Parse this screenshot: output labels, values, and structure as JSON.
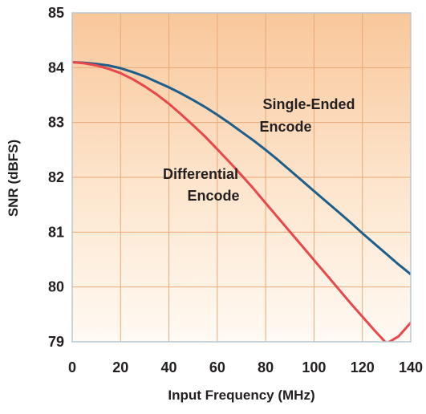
{
  "chart_data": {
    "type": "line",
    "xlabel": "Input Frequency (MHz)",
    "ylabel": "SNR (dBFS)",
    "xlim": [
      0,
      140
    ],
    "ylim": [
      79,
      85
    ],
    "x_ticks": [
      "0",
      "20",
      "40",
      "60",
      "80",
      "100",
      "120",
      "140"
    ],
    "y_ticks": [
      "79",
      "80",
      "81",
      "82",
      "83",
      "84",
      "85"
    ],
    "grid": true,
    "background": "orange-to-white vertical gradient",
    "series": [
      {
        "color": "#1d5f8a",
        "x": [
          0,
          5,
          10,
          15,
          20,
          25,
          30,
          35,
          40,
          45,
          50,
          55,
          60,
          65,
          70,
          75,
          80,
          85,
          90,
          95,
          100,
          105,
          110,
          115,
          120,
          125,
          130,
          135,
          140
        ],
        "y": [
          84.1,
          84.09,
          84.07,
          84.04,
          83.99,
          83.92,
          83.84,
          83.74,
          83.64,
          83.53,
          83.41,
          83.28,
          83.14,
          82.99,
          82.83,
          82.67,
          82.5,
          82.32,
          82.13,
          81.94,
          81.75,
          81.56,
          81.37,
          81.18,
          80.98,
          80.79,
          80.6,
          80.41,
          80.23
        ]
      },
      {
        "color": "#e8474b",
        "x": [
          0,
          5,
          10,
          15,
          20,
          25,
          30,
          35,
          40,
          45,
          50,
          55,
          60,
          65,
          70,
          75,
          80,
          85,
          90,
          95,
          100,
          105,
          110,
          115,
          120,
          125,
          130,
          135,
          140
        ],
        "y": [
          84.1,
          84.08,
          84.04,
          83.98,
          83.9,
          83.79,
          83.66,
          83.51,
          83.34,
          83.15,
          82.95,
          82.74,
          82.51,
          82.28,
          82.04,
          81.79,
          81.53,
          81.27,
          81.01,
          80.75,
          80.49,
          80.23,
          79.97,
          79.71,
          79.46,
          79.21,
          78.97,
          79.1,
          79.35
        ]
      }
    ],
    "annotations": [
      {
        "lines": [
          "Single-Ended",
          "Encode"
        ]
      },
      {
        "lines": [
          "Differential",
          "Encode"
        ]
      }
    ]
  }
}
